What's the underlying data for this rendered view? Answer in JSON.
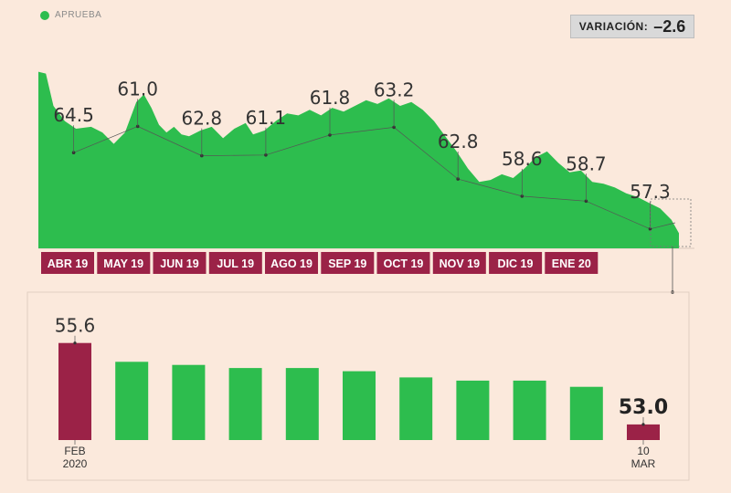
{
  "legend": {
    "label": "APRUEBA",
    "color": "#2dbd4e"
  },
  "badge": {
    "label": "VARIACIÓN:",
    "value": "–2.6"
  },
  "colors": {
    "green": "#2dbd4e",
    "maroon": "#9b2247",
    "background": "#fbe9dc"
  },
  "chart_data": [
    {
      "type": "area",
      "series": [
        {
          "name": "APRUEBA",
          "points": [
            {
              "t": 0.0,
              "y": 64.8
            },
            {
              "t": 0.1,
              "y": 64.7
            },
            {
              "t": 0.2,
              "y": 63.0
            },
            {
              "t": 0.35,
              "y": 62.2
            },
            {
              "t": 0.5,
              "y": 61.8
            },
            {
              "t": 0.7,
              "y": 61.9
            },
            {
              "t": 0.85,
              "y": 61.6
            },
            {
              "t": 1.0,
              "y": 61.0
            },
            {
              "t": 1.15,
              "y": 61.6
            },
            {
              "t": 1.3,
              "y": 63.2
            },
            {
              "t": 1.4,
              "y": 63.6
            },
            {
              "t": 1.5,
              "y": 62.9
            },
            {
              "t": 1.6,
              "y": 62.0
            },
            {
              "t": 1.7,
              "y": 61.6
            },
            {
              "t": 1.8,
              "y": 61.9
            },
            {
              "t": 1.9,
              "y": 61.5
            },
            {
              "t": 2.0,
              "y": 61.4
            },
            {
              "t": 2.15,
              "y": 61.7
            },
            {
              "t": 2.3,
              "y": 61.9
            },
            {
              "t": 2.45,
              "y": 61.3
            },
            {
              "t": 2.6,
              "y": 61.8
            },
            {
              "t": 2.75,
              "y": 62.1
            },
            {
              "t": 2.85,
              "y": 61.5
            },
            {
              "t": 3.0,
              "y": 61.7
            },
            {
              "t": 3.15,
              "y": 62.2
            },
            {
              "t": 3.3,
              "y": 62.6
            },
            {
              "t": 3.45,
              "y": 62.5
            },
            {
              "t": 3.6,
              "y": 62.8
            },
            {
              "t": 3.75,
              "y": 62.5
            },
            {
              "t": 3.9,
              "y": 62.9
            },
            {
              "t": 4.05,
              "y": 62.7
            },
            {
              "t": 4.2,
              "y": 63.0
            },
            {
              "t": 4.35,
              "y": 63.3
            },
            {
              "t": 4.5,
              "y": 63.1
            },
            {
              "t": 4.65,
              "y": 63.4
            },
            {
              "t": 4.8,
              "y": 63.0
            },
            {
              "t": 4.95,
              "y": 63.2
            },
            {
              "t": 5.1,
              "y": 62.8
            },
            {
              "t": 5.25,
              "y": 62.2
            },
            {
              "t": 5.4,
              "y": 61.4
            },
            {
              "t": 5.55,
              "y": 60.6
            },
            {
              "t": 5.7,
              "y": 59.7
            },
            {
              "t": 5.85,
              "y": 59.0
            },
            {
              "t": 6.0,
              "y": 59.1
            },
            {
              "t": 6.15,
              "y": 59.4
            },
            {
              "t": 6.3,
              "y": 59.2
            },
            {
              "t": 6.45,
              "y": 59.7
            },
            {
              "t": 6.6,
              "y": 60.3
            },
            {
              "t": 6.75,
              "y": 60.6
            },
            {
              "t": 6.9,
              "y": 60.0
            },
            {
              "t": 7.05,
              "y": 59.5
            },
            {
              "t": 7.2,
              "y": 59.6
            },
            {
              "t": 7.35,
              "y": 59.0
            },
            {
              "t": 7.5,
              "y": 58.9
            },
            {
              "t": 7.65,
              "y": 58.7
            },
            {
              "t": 7.8,
              "y": 58.4
            },
            {
              "t": 7.95,
              "y": 58.2
            },
            {
              "t": 8.1,
              "y": 57.9
            },
            {
              "t": 8.25,
              "y": 57.6
            },
            {
              "t": 8.4,
              "y": 57.0
            },
            {
              "t": 8.5,
              "y": 56.3
            }
          ]
        }
      ],
      "annotations": [
        {
          "label": "64.5",
          "t": 0.55
        },
        {
          "label": "61.0",
          "t": 1.55
        },
        {
          "label": "62.8",
          "t": 2.55
        },
        {
          "label": "61.1",
          "t": 3.55
        },
        {
          "label": "61.8",
          "t": 4.55
        },
        {
          "label": "63.2",
          "t": 5.55
        },
        {
          "label": "62.8",
          "t": 6.55
        },
        {
          "label": "58.6",
          "t": 7.55
        },
        {
          "label": "58.7",
          "t": 8.55
        },
        {
          "label": "57.3",
          "t": 9.55
        }
      ],
      "ylim": [
        55.5,
        65.5
      ],
      "categories": [
        "ABR 19",
        "MAY 19",
        "JUN 19",
        "JUL 19",
        "AGO 19",
        "SEP 19",
        "OCT 19",
        "NOV 19",
        "DIC 19",
        "ENE 20"
      ]
    },
    {
      "type": "bar",
      "categories": [
        "FEB\n2020",
        "",
        "",
        "",
        "",
        "",
        "",
        "",
        "",
        "",
        "10\nMAR"
      ],
      "values": [
        55.6,
        55.0,
        54.9,
        54.8,
        54.8,
        54.7,
        54.5,
        54.4,
        54.4,
        54.2,
        53.0
      ],
      "value_labels": [
        "55.6",
        "",
        "",
        "",
        "",
        "",
        "",
        "",
        "",
        "",
        "53.0"
      ],
      "highlight": [
        0,
        10
      ],
      "ylim": [
        52.5,
        56.0
      ]
    }
  ]
}
